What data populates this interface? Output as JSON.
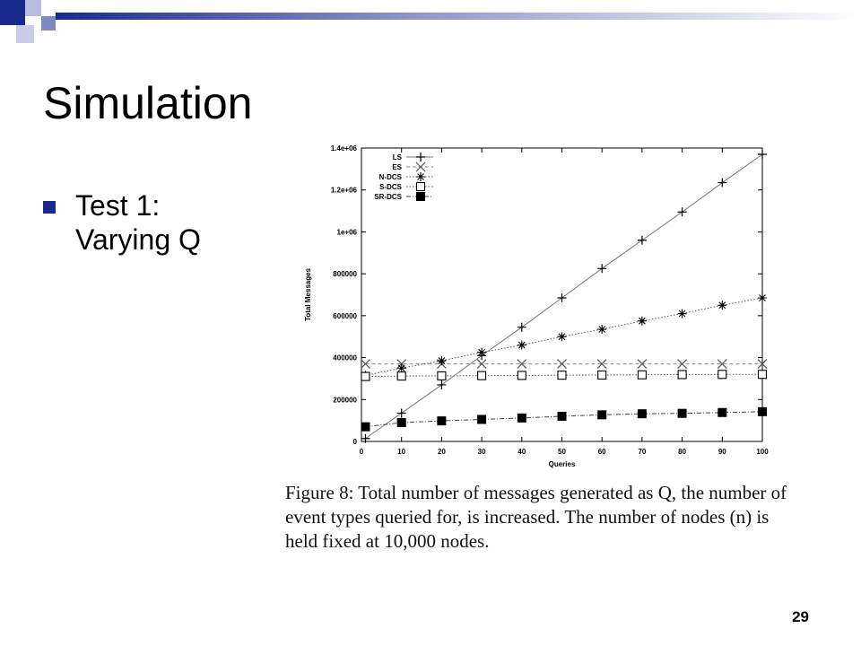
{
  "slide": {
    "title": "Simulation",
    "bullet": {
      "lead": "Test 1:",
      "rest": "Varying Q"
    },
    "caption": "Figure 8: Total number of messages generated as Q, the number of event types queried for, is increased. The number of nodes (n) is held fixed at 10,000 nodes.",
    "page_number": "29",
    "accent_color": "#1a2a8c"
  },
  "chart_data": {
    "type": "line",
    "title": "",
    "xlabel": "Queries",
    "ylabel": "Total Messages",
    "xlim": [
      0,
      100
    ],
    "ylim": [
      0,
      1400000
    ],
    "x_ticks": [
      0,
      10,
      20,
      30,
      40,
      50,
      60,
      70,
      80,
      90,
      100
    ],
    "y_ticks": [
      0,
      200000,
      400000,
      600000,
      800000,
      1000000,
      1200000,
      1400000
    ],
    "y_tick_labels": [
      "0",
      "200000",
      "400000",
      "600000",
      "800000",
      "1e+06",
      "1.2e+06",
      "1.4e+06"
    ],
    "legend_position": "top-left",
    "x": [
      1,
      10,
      20,
      30,
      40,
      50,
      60,
      70,
      80,
      90,
      100
    ],
    "series": [
      {
        "name": "LS",
        "marker": "plus",
        "line": "solid",
        "values": [
          14000,
          135000,
          270000,
          410000,
          545000,
          685000,
          825000,
          960000,
          1095000,
          1235000,
          1370000
        ]
      },
      {
        "name": "ES",
        "marker": "cross",
        "line": "dashed",
        "values": [
          370000,
          370000,
          370000,
          370000,
          370000,
          370000,
          370000,
          370000,
          370000,
          370000,
          370000
        ]
      },
      {
        "name": "N-DCS",
        "marker": "star",
        "line": "dotted",
        "values": [
          315000,
          350000,
          385000,
          425000,
          460000,
          500000,
          535000,
          575000,
          610000,
          650000,
          685000
        ]
      },
      {
        "name": "S-DCS",
        "marker": "square-open",
        "line": "dotted",
        "values": [
          310000,
          312000,
          313000,
          314000,
          315000,
          316000,
          317000,
          318000,
          319000,
          320000,
          320000
        ]
      },
      {
        "name": "SR-DCS",
        "marker": "square-filled",
        "line": "dashdot",
        "values": [
          70000,
          90000,
          98000,
          105000,
          112000,
          120000,
          127000,
          132000,
          134000,
          138000,
          142000
        ]
      }
    ]
  }
}
